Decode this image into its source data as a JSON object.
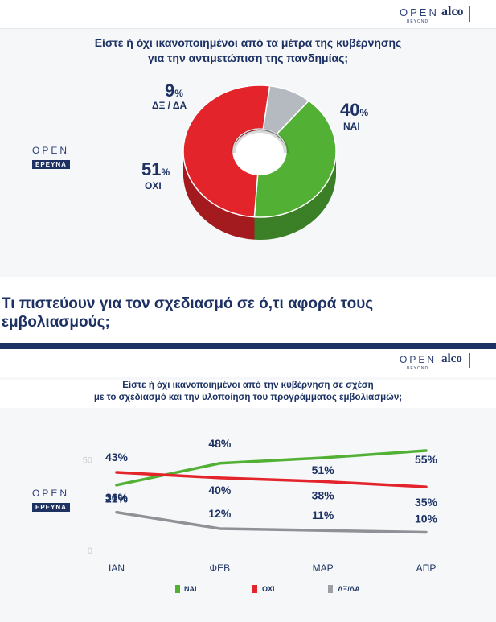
{
  "brand": {
    "open": "OPEN",
    "beyond": "BEYOND",
    "alco": "alco",
    "open_logo_top": "OPEN",
    "open_logo_badge": "ΕΡΕΥΝΑ"
  },
  "pie_chart": {
    "title_line1": "Είστε ή όχι ικανοποιημένοι από τα μέτρα της κυβέρνησης",
    "title_line2": "για την αντιμετώπιση της πανδημίας;"
  },
  "section": {
    "heading_line1": "Τι πιστεύουν για τον σχεδιασμό σε ό,τι αφορά τους",
    "heading_line2": "εμβολιασμούς;"
  },
  "line_chart": {
    "title_line1": "Είστε ή όχι ικανοποιημένοι από την κυβέρνηση σε σχέση",
    "title_line2": "με το σχεδιασμό και την υλοποίηση του προγράμματος εμβολιασμών;"
  },
  "chart_data": [
    {
      "type": "pie",
      "title": "Είστε ή όχι ικανοποιημένοι από τα μέτρα της κυβέρνησης για την αντιμετώπιση της πανδημίας;",
      "categories": [
        "ΝΑΙ",
        "ΟΧΙ",
        "ΔΞ / ΔΑ"
      ],
      "values": [
        40,
        51,
        9
      ],
      "value_labels": [
        "40",
        "51",
        "9"
      ],
      "unit": "%",
      "colors": [
        "#52b135",
        "#e3242b",
        "#b4babf"
      ]
    },
    {
      "type": "line",
      "title": "Είστε ή όχι ικανοποιημένοι από την κυβέρνηση σε σχέση με το σχεδιασμό και την υλοποίηση του προγράμματος εμβολιασμών;",
      "x": [
        "ΙΑΝ",
        "ΦΕΒ",
        "ΜΑΡ",
        "ΑΠΡ"
      ],
      "ylim": [
        0,
        50
      ],
      "yticks": [
        "0",
        "50"
      ],
      "series": [
        {
          "name": "ΝΑΙ",
          "values": [
            36,
            48,
            51,
            55
          ],
          "labels": [
            "36%",
            "48%",
            "51%",
            "55%"
          ],
          "color": "#52b135"
        },
        {
          "name": "ΟΧΙ",
          "values": [
            43,
            40,
            38,
            35
          ],
          "labels": [
            "43%",
            "40%",
            "38%",
            "35%"
          ],
          "color": "#e3242b"
        },
        {
          "name": "ΔΞ/ΔΑ",
          "values": [
            21,
            12,
            11,
            10
          ],
          "labels": [
            "21%",
            "12%",
            "11%",
            "10%"
          ],
          "color": "#8e9296"
        }
      ],
      "legend": "bottom"
    }
  ]
}
